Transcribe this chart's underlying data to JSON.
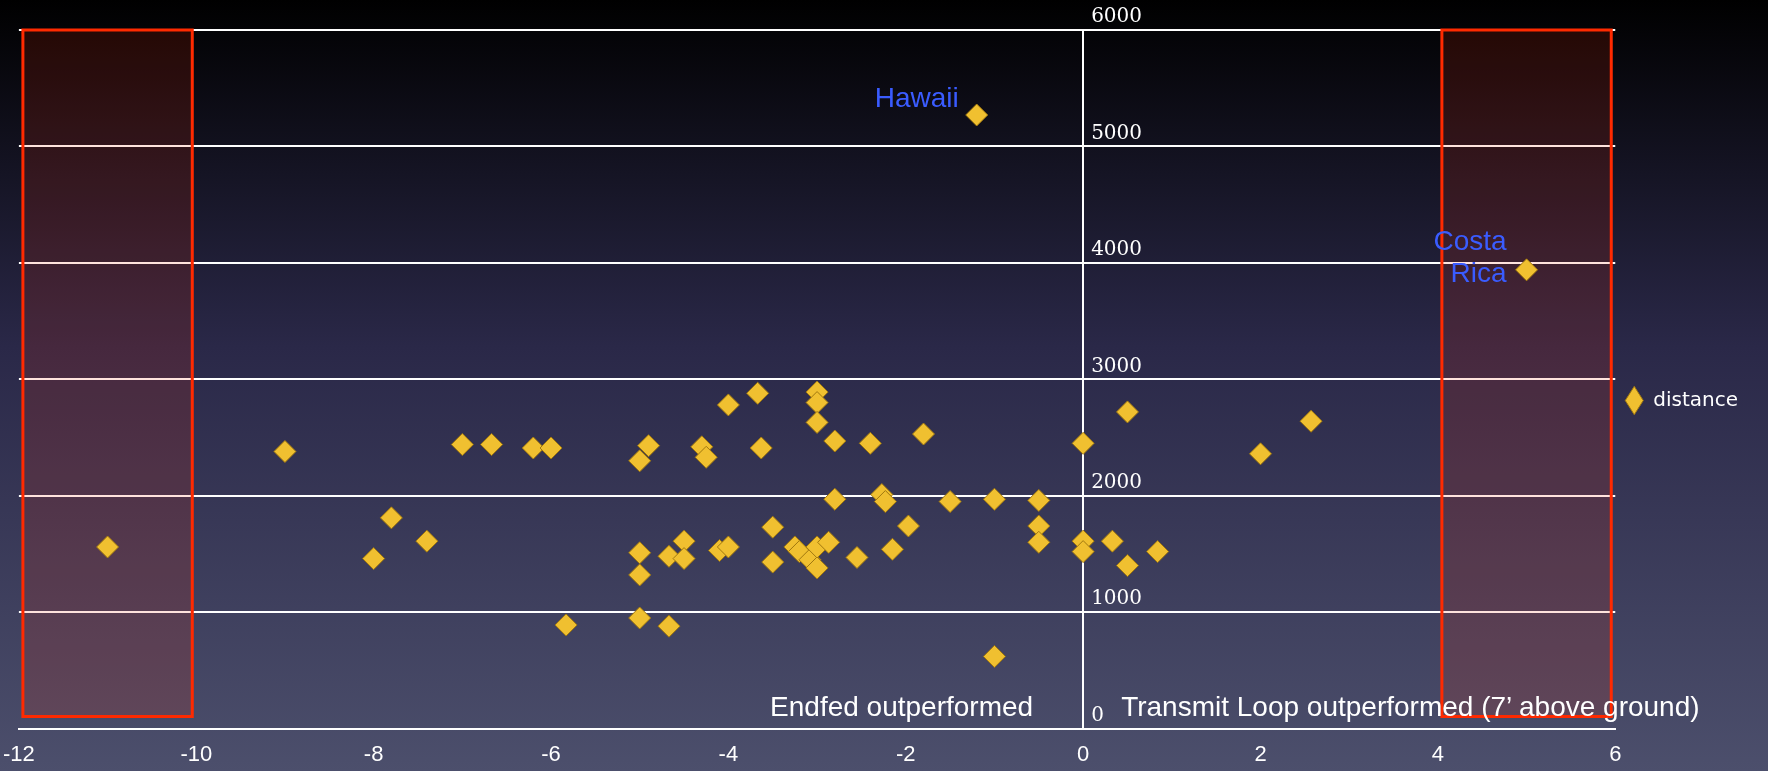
{
  "chart_data": {
    "type": "scatter",
    "marker": "diamond",
    "grid": "y",
    "legend": "right",
    "xlim": [
      -12,
      6
    ],
    "xticks": [
      -12,
      -10,
      -8,
      -6,
      -4,
      -2,
      0,
      2,
      4,
      6
    ],
    "ylim": [
      0,
      6000
    ],
    "yticks": [
      0,
      1000,
      2000,
      3000,
      4000,
      5000,
      6000
    ],
    "series": [
      {
        "name": "distance",
        "color": "#f0c030",
        "x": [
          -11,
          -9,
          -7,
          -6.67,
          -6.2,
          -6,
          -7.8,
          -7.4,
          -8,
          -5.83,
          -5,
          -4.67,
          -5,
          -4.9,
          -5,
          -5,
          -4.67,
          -4.5,
          -4.5,
          -4.3,
          -4.25,
          -4.1,
          -4,
          -4,
          -3.67,
          -3.63,
          -3.5,
          -3.5,
          -3.25,
          -3.2,
          -3.08,
          -3,
          -3,
          -3,
          -3,
          -3,
          -2.87,
          -2.8,
          -2.8,
          -2.55,
          -2.4,
          -2.27,
          -2.23,
          -2.15,
          -1.97,
          -1.8,
          -1.5,
          -1,
          -1,
          -1.2,
          -0.5,
          -0.5,
          -0.5,
          0,
          0,
          0,
          0.33,
          0.5,
          0.5,
          0.84,
          2,
          2.57,
          5
        ],
        "values": [
          1560,
          2380,
          2440,
          2440,
          2410,
          2410,
          1810,
          1610,
          1460,
          890,
          950,
          880,
          2300,
          2430,
          1510,
          1320,
          1480,
          1610,
          1460,
          2420,
          2330,
          1530,
          1560,
          2780,
          2880,
          2410,
          1730,
          1430,
          1560,
          1520,
          1450,
          2890,
          2800,
          2630,
          1380,
          1560,
          1600,
          2470,
          1970,
          1470,
          2450,
          2010,
          1950,
          1540,
          1740,
          2530,
          1950,
          620,
          1970,
          5270,
          1960,
          1740,
          1600,
          2450,
          1610,
          1520,
          1610,
          2720,
          1400,
          1520,
          2360,
          2640,
          3940
        ]
      }
    ],
    "bands": [
      {
        "axis": "x",
        "from": -12,
        "to": -10,
        "color": "#ff2a00"
      },
      {
        "axis": "x",
        "from": 4,
        "to": 6,
        "color": "#ff2a00"
      }
    ],
    "annotations": [
      {
        "text": "Hawaii",
        "x": -1.2,
        "y": 5270
      },
      {
        "text": "Costa Rica",
        "x": 5,
        "y": 3940
      },
      "Endfed outperformed",
      "Transmit Loop outperformed (7’ above ground)"
    ]
  }
}
